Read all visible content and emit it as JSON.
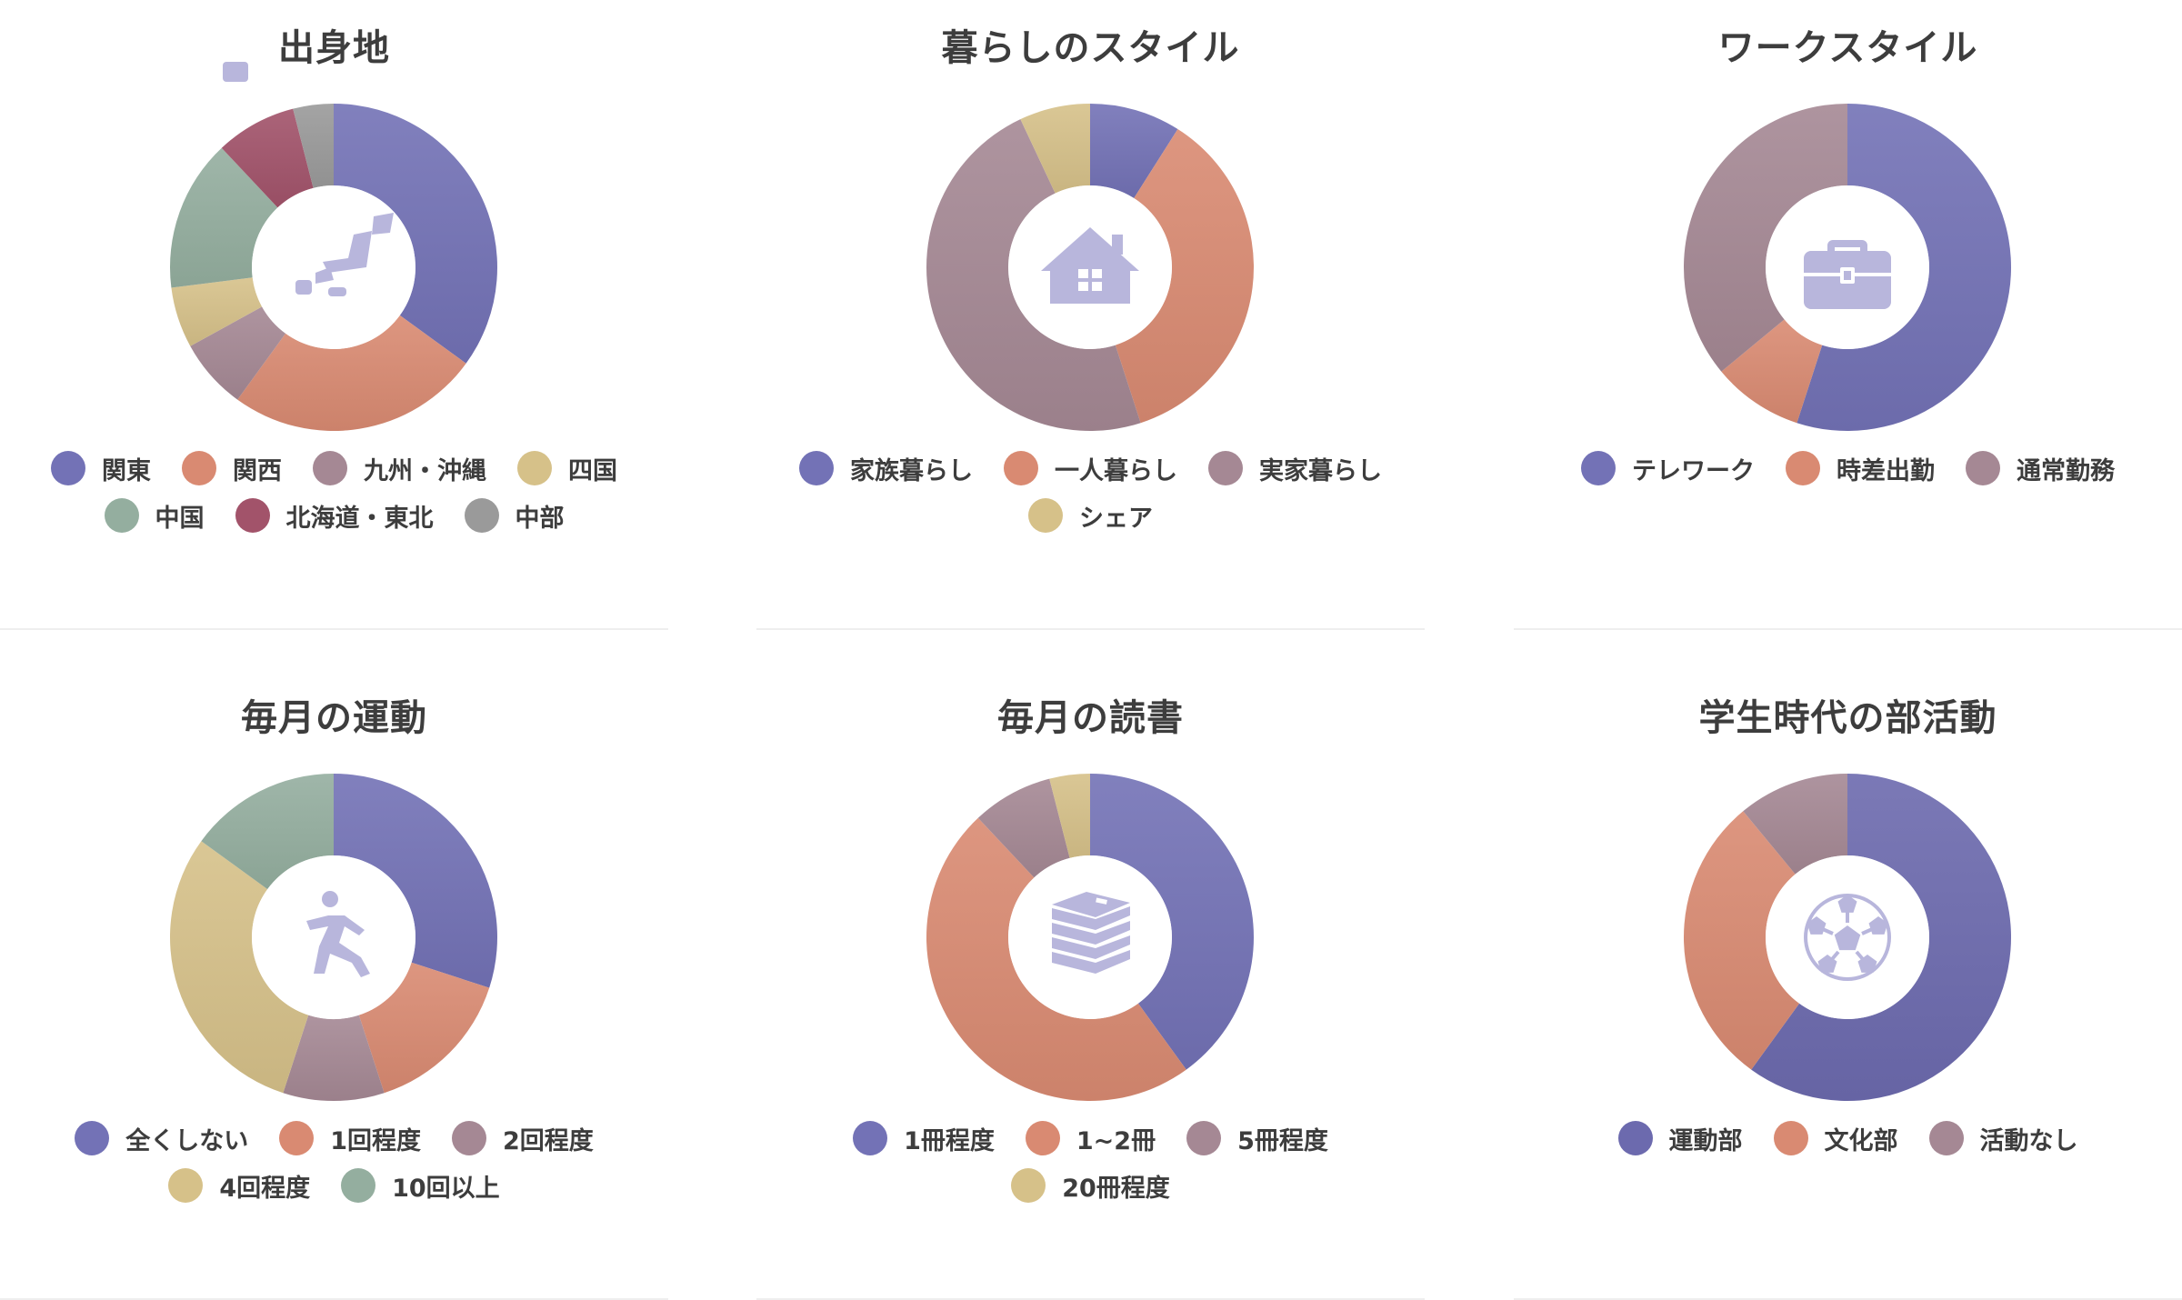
{
  "palette": {
    "purple": "#7372b6",
    "salmon": "#d98a72",
    "mauve": "#a58894",
    "khaki": "#d6c189",
    "sage": "#94ae9f",
    "wine": "#a2536a",
    "gray": "#9a9a9a",
    "icon": "#b8b6dc"
  },
  "chart_data": [
    {
      "type": "pie",
      "title": "出身地",
      "icon": "japan-map-icon",
      "categories": [
        "関東",
        "関西",
        "九州・沖縄",
        "四国",
        "中国",
        "北海道・東北",
        "中部"
      ],
      "values": [
        35,
        25,
        7,
        6,
        15,
        8,
        4
      ],
      "colors": [
        "#7372b6",
        "#d98a72",
        "#a58894",
        "#d6c189",
        "#94ae9f",
        "#a2536a",
        "#9a9a9a"
      ]
    },
    {
      "type": "pie",
      "title": "暮らしのスタイル",
      "icon": "house-icon",
      "categories": [
        "家族暮らし",
        "一人暮らし",
        "実家暮らし",
        "シェア"
      ],
      "values": [
        9,
        36,
        48,
        7
      ],
      "colors": [
        "#7372b6",
        "#d98a72",
        "#a58894",
        "#d6c189"
      ]
    },
    {
      "type": "pie",
      "title": "ワークスタイル",
      "icon": "briefcase-icon",
      "categories": [
        "テレワーク",
        "時差出勤",
        "通常勤務"
      ],
      "values": [
        55,
        9,
        36
      ],
      "colors": [
        "#7372b6",
        "#d98a72",
        "#a58894"
      ]
    },
    {
      "type": "pie",
      "title": "毎月の運動",
      "icon": "running-person-icon",
      "categories": [
        "全くしない",
        "1回程度",
        "2回程度",
        "4回程度",
        "10回以上"
      ],
      "values": [
        30,
        15,
        10,
        30,
        15
      ],
      "colors": [
        "#7372b6",
        "#d98a72",
        "#a58894",
        "#d6c189",
        "#94ae9f"
      ]
    },
    {
      "type": "pie",
      "title": "毎月の読書",
      "icon": "books-icon",
      "categories": [
        "1冊程度",
        "1~2冊",
        "5冊程度",
        "20冊程度"
      ],
      "values": [
        40,
        48,
        8,
        4
      ],
      "colors": [
        "#7372b6",
        "#d98a72",
        "#a58894",
        "#d6c189"
      ]
    },
    {
      "type": "pie",
      "title": "学生時代の部活動",
      "icon": "soccer-ball-icon",
      "categories": [
        "運動部",
        "文化部",
        "活動なし"
      ],
      "values": [
        60,
        29,
        11
      ],
      "colors": [
        "#6c6aae",
        "#d98a72",
        "#a58894"
      ]
    }
  ]
}
